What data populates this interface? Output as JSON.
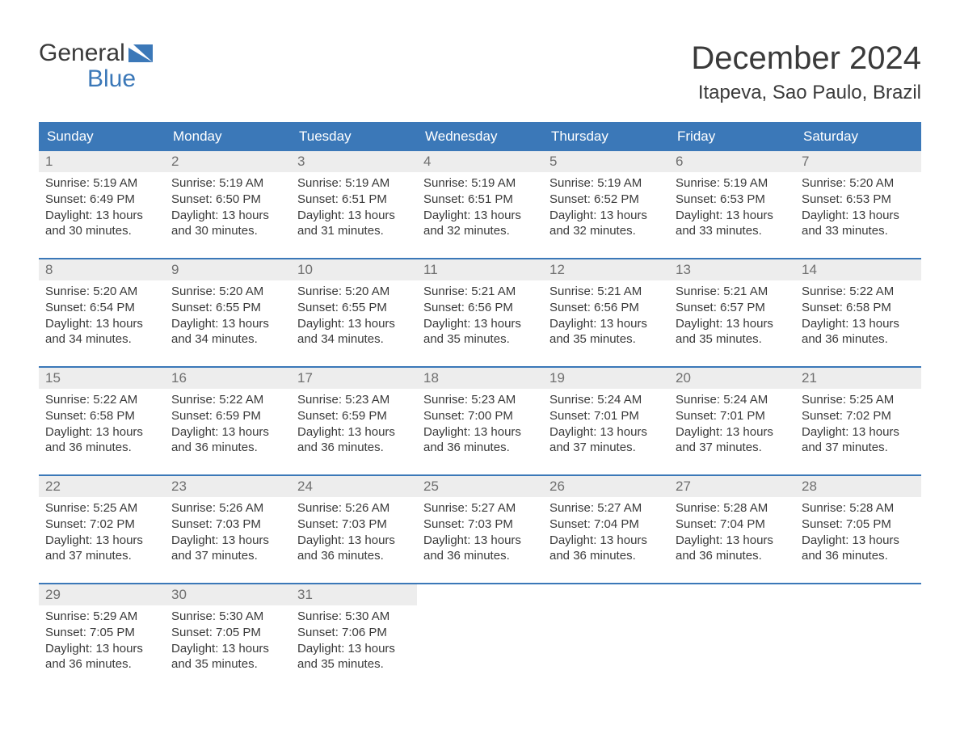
{
  "logo": {
    "word1": "General",
    "word2": "Blue"
  },
  "title": "December 2024",
  "location": "Itapeva, Sao Paulo, Brazil",
  "colors": {
    "header_bg": "#3b78b8",
    "header_text": "#ffffff",
    "daynum_bg": "#ededed",
    "daynum_text": "#6f6f6f",
    "body_text": "#3a3a3a",
    "page_bg": "#ffffff",
    "week_divider": "#3b78b8"
  },
  "calendar": {
    "type": "table",
    "columns": [
      "Sunday",
      "Monday",
      "Tuesday",
      "Wednesday",
      "Thursday",
      "Friday",
      "Saturday"
    ],
    "col_widths_pct": [
      14.28,
      14.28,
      14.28,
      14.28,
      14.28,
      14.28,
      14.28
    ],
    "fontsize_header": 17,
    "fontsize_daynum": 17,
    "fontsize_body": 15,
    "weeks": [
      [
        {
          "n": "1",
          "sunrise": "Sunrise: 5:19 AM",
          "sunset": "Sunset: 6:49 PM",
          "dl1": "Daylight: 13 hours",
          "dl2": "and 30 minutes."
        },
        {
          "n": "2",
          "sunrise": "Sunrise: 5:19 AM",
          "sunset": "Sunset: 6:50 PM",
          "dl1": "Daylight: 13 hours",
          "dl2": "and 30 minutes."
        },
        {
          "n": "3",
          "sunrise": "Sunrise: 5:19 AM",
          "sunset": "Sunset: 6:51 PM",
          "dl1": "Daylight: 13 hours",
          "dl2": "and 31 minutes."
        },
        {
          "n": "4",
          "sunrise": "Sunrise: 5:19 AM",
          "sunset": "Sunset: 6:51 PM",
          "dl1": "Daylight: 13 hours",
          "dl2": "and 32 minutes."
        },
        {
          "n": "5",
          "sunrise": "Sunrise: 5:19 AM",
          "sunset": "Sunset: 6:52 PM",
          "dl1": "Daylight: 13 hours",
          "dl2": "and 32 minutes."
        },
        {
          "n": "6",
          "sunrise": "Sunrise: 5:19 AM",
          "sunset": "Sunset: 6:53 PM",
          "dl1": "Daylight: 13 hours",
          "dl2": "and 33 minutes."
        },
        {
          "n": "7",
          "sunrise": "Sunrise: 5:20 AM",
          "sunset": "Sunset: 6:53 PM",
          "dl1": "Daylight: 13 hours",
          "dl2": "and 33 minutes."
        }
      ],
      [
        {
          "n": "8",
          "sunrise": "Sunrise: 5:20 AM",
          "sunset": "Sunset: 6:54 PM",
          "dl1": "Daylight: 13 hours",
          "dl2": "and 34 minutes."
        },
        {
          "n": "9",
          "sunrise": "Sunrise: 5:20 AM",
          "sunset": "Sunset: 6:55 PM",
          "dl1": "Daylight: 13 hours",
          "dl2": "and 34 minutes."
        },
        {
          "n": "10",
          "sunrise": "Sunrise: 5:20 AM",
          "sunset": "Sunset: 6:55 PM",
          "dl1": "Daylight: 13 hours",
          "dl2": "and 34 minutes."
        },
        {
          "n": "11",
          "sunrise": "Sunrise: 5:21 AM",
          "sunset": "Sunset: 6:56 PM",
          "dl1": "Daylight: 13 hours",
          "dl2": "and 35 minutes."
        },
        {
          "n": "12",
          "sunrise": "Sunrise: 5:21 AM",
          "sunset": "Sunset: 6:56 PM",
          "dl1": "Daylight: 13 hours",
          "dl2": "and 35 minutes."
        },
        {
          "n": "13",
          "sunrise": "Sunrise: 5:21 AM",
          "sunset": "Sunset: 6:57 PM",
          "dl1": "Daylight: 13 hours",
          "dl2": "and 35 minutes."
        },
        {
          "n": "14",
          "sunrise": "Sunrise: 5:22 AM",
          "sunset": "Sunset: 6:58 PM",
          "dl1": "Daylight: 13 hours",
          "dl2": "and 36 minutes."
        }
      ],
      [
        {
          "n": "15",
          "sunrise": "Sunrise: 5:22 AM",
          "sunset": "Sunset: 6:58 PM",
          "dl1": "Daylight: 13 hours",
          "dl2": "and 36 minutes."
        },
        {
          "n": "16",
          "sunrise": "Sunrise: 5:22 AM",
          "sunset": "Sunset: 6:59 PM",
          "dl1": "Daylight: 13 hours",
          "dl2": "and 36 minutes."
        },
        {
          "n": "17",
          "sunrise": "Sunrise: 5:23 AM",
          "sunset": "Sunset: 6:59 PM",
          "dl1": "Daylight: 13 hours",
          "dl2": "and 36 minutes."
        },
        {
          "n": "18",
          "sunrise": "Sunrise: 5:23 AM",
          "sunset": "Sunset: 7:00 PM",
          "dl1": "Daylight: 13 hours",
          "dl2": "and 36 minutes."
        },
        {
          "n": "19",
          "sunrise": "Sunrise: 5:24 AM",
          "sunset": "Sunset: 7:01 PM",
          "dl1": "Daylight: 13 hours",
          "dl2": "and 37 minutes."
        },
        {
          "n": "20",
          "sunrise": "Sunrise: 5:24 AM",
          "sunset": "Sunset: 7:01 PM",
          "dl1": "Daylight: 13 hours",
          "dl2": "and 37 minutes."
        },
        {
          "n": "21",
          "sunrise": "Sunrise: 5:25 AM",
          "sunset": "Sunset: 7:02 PM",
          "dl1": "Daylight: 13 hours",
          "dl2": "and 37 minutes."
        }
      ],
      [
        {
          "n": "22",
          "sunrise": "Sunrise: 5:25 AM",
          "sunset": "Sunset: 7:02 PM",
          "dl1": "Daylight: 13 hours",
          "dl2": "and 37 minutes."
        },
        {
          "n": "23",
          "sunrise": "Sunrise: 5:26 AM",
          "sunset": "Sunset: 7:03 PM",
          "dl1": "Daylight: 13 hours",
          "dl2": "and 37 minutes."
        },
        {
          "n": "24",
          "sunrise": "Sunrise: 5:26 AM",
          "sunset": "Sunset: 7:03 PM",
          "dl1": "Daylight: 13 hours",
          "dl2": "and 36 minutes."
        },
        {
          "n": "25",
          "sunrise": "Sunrise: 5:27 AM",
          "sunset": "Sunset: 7:03 PM",
          "dl1": "Daylight: 13 hours",
          "dl2": "and 36 minutes."
        },
        {
          "n": "26",
          "sunrise": "Sunrise: 5:27 AM",
          "sunset": "Sunset: 7:04 PM",
          "dl1": "Daylight: 13 hours",
          "dl2": "and 36 minutes."
        },
        {
          "n": "27",
          "sunrise": "Sunrise: 5:28 AM",
          "sunset": "Sunset: 7:04 PM",
          "dl1": "Daylight: 13 hours",
          "dl2": "and 36 minutes."
        },
        {
          "n": "28",
          "sunrise": "Sunrise: 5:28 AM",
          "sunset": "Sunset: 7:05 PM",
          "dl1": "Daylight: 13 hours",
          "dl2": "and 36 minutes."
        }
      ],
      [
        {
          "n": "29",
          "sunrise": "Sunrise: 5:29 AM",
          "sunset": "Sunset: 7:05 PM",
          "dl1": "Daylight: 13 hours",
          "dl2": "and 36 minutes."
        },
        {
          "n": "30",
          "sunrise": "Sunrise: 5:30 AM",
          "sunset": "Sunset: 7:05 PM",
          "dl1": "Daylight: 13 hours",
          "dl2": "and 35 minutes."
        },
        {
          "n": "31",
          "sunrise": "Sunrise: 5:30 AM",
          "sunset": "Sunset: 7:06 PM",
          "dl1": "Daylight: 13 hours",
          "dl2": "and 35 minutes."
        },
        {
          "empty": true
        },
        {
          "empty": true
        },
        {
          "empty": true
        },
        {
          "empty": true
        }
      ]
    ]
  }
}
